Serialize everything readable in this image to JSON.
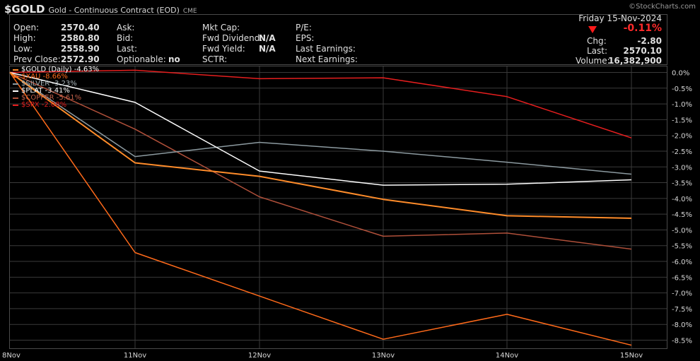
{
  "header": {
    "symbol": "$GOLD",
    "description": "Gold - Continuous Contract (EOD)",
    "exchange": "CME",
    "brand": "©StockCharts.com"
  },
  "quote": {
    "open_label": "Open:",
    "open_value": "2570.40",
    "high_label": "High:",
    "high_value": "2580.80",
    "low_label": "Low:",
    "low_value": "2558.90",
    "prev_close_label": "Prev Close:",
    "prev_close_value": "2572.90",
    "ask_label": "Ask:",
    "bid_label": "Bid:",
    "last_label": "Last:",
    "optionable_label": "Optionable:",
    "optionable_value": "no",
    "mkt_cap_label": "Mkt Cap:",
    "fwd_dividend_label": "Fwd Dividend:",
    "fwd_dividend_value": "N/A",
    "fwd_yield_label": "Fwd Yield:",
    "fwd_yield_value": "N/A",
    "sctr_label": "SCTR:",
    "pe_label": "P/E:",
    "eps_label": "EPS:",
    "last_earnings_label": "Last Earnings:",
    "next_earnings_label": "Next Earnings:",
    "date": "Friday 15-Nov-2024",
    "change_pct": "-0.11%",
    "chg_label": "Chg:",
    "chg_value": "-2.80",
    "last_label2": "Last:",
    "last_value": "2570.10",
    "volume_label": "Volume:",
    "volume_value": "16,382,900"
  },
  "colors": {
    "gold": "#ff8c2a",
    "xau": "#ff6a1a",
    "silver": "#8c9aa0",
    "plat": "#ffffff",
    "copper": "#b0503a",
    "spx": "#e61e1e",
    "grid": "#3a3a3a",
    "down": "#ff2a2a"
  },
  "chart_data": {
    "type": "line",
    "x": [
      "8Nov",
      "11Nov",
      "12Nov",
      "13Nov",
      "14Nov",
      "15Nov"
    ],
    "ylim": [
      -8.7,
      0.2
    ],
    "yticks": [
      0.0,
      -0.5,
      -1.0,
      -1.5,
      -2.0,
      -2.5,
      -3.0,
      -3.5,
      -4.0,
      -4.5,
      -5.0,
      -5.5,
      -6.0,
      -6.5,
      -7.0,
      -7.5,
      -8.0,
      -8.5
    ],
    "ytick_labels": [
      "0.0%",
      "-0.5%",
      "-1.0%",
      "-1.5%",
      "-2.0%",
      "-2.5%",
      "-3.0%",
      "-3.5%",
      "-4.0%",
      "-4.5%",
      "-5.0%",
      "-5.5%",
      "-6.0%",
      "-6.5%",
      "-7.0%",
      "-7.5%",
      "-8.0%",
      "-8.5%"
    ],
    "grid": true,
    "legend_position": "top-left",
    "series": [
      {
        "name": "$GOLD (Daily) -4.63%",
        "color": "#ff8c2a",
        "values": [
          0.0,
          -2.87,
          -3.3,
          -4.03,
          -4.55,
          -4.63
        ]
      },
      {
        "name": "$XAU -8.66%",
        "color": "#ff6a1a",
        "values": [
          0.0,
          -5.72,
          -7.1,
          -8.47,
          -7.68,
          -8.66
        ]
      },
      {
        "name": "$SILVER -3.23%",
        "color": "#8c9aa0",
        "values": [
          0.0,
          -2.67,
          -2.22,
          -2.5,
          -2.85,
          -3.23
        ]
      },
      {
        "name": "$PLAT -3.41%",
        "color": "#ffffff",
        "values": [
          0.0,
          -0.95,
          -3.13,
          -3.58,
          -3.55,
          -3.41
        ]
      },
      {
        "name": "$COPPER -5.61%",
        "color": "#b0503a",
        "values": [
          0.0,
          -1.8,
          -3.95,
          -5.2,
          -5.1,
          -5.61
        ]
      },
      {
        "name": "$SPX -2.08%",
        "color": "#e61e1e",
        "values": [
          0.0,
          0.07,
          -0.2,
          -0.17,
          -0.77,
          -2.08
        ]
      }
    ]
  }
}
